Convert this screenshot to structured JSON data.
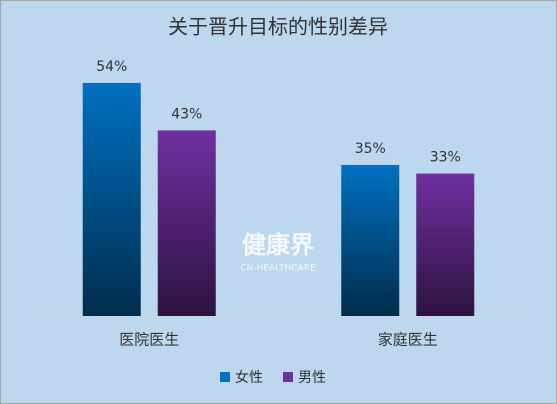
{
  "chart_data": {
    "type": "bar",
    "title": "关于晋升目标的性别差异",
    "categories": [
      "医院医生",
      "家庭医生"
    ],
    "series": [
      {
        "name": "女性",
        "color": "#0070c0",
        "values": [
          54,
          35
        ],
        "value_labels": [
          "54%",
          "35%"
        ]
      },
      {
        "name": "男性",
        "color": "#7030a0",
        "values": [
          43,
          33
        ],
        "value_labels": [
          "43%",
          "33%"
        ]
      }
    ],
    "ylim": [
      0,
      60
    ],
    "annotations": [
      "健康界",
      "CN-HEALTHCARE"
    ],
    "legend": "bottom"
  }
}
